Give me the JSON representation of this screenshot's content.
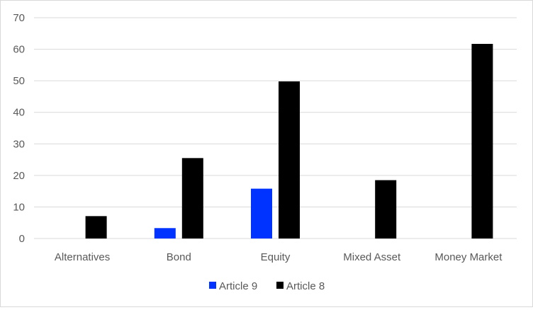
{
  "chart_data": {
    "type": "bar",
    "title": "",
    "xlabel": "",
    "ylabel": "",
    "categories": [
      "Alternatives",
      "Bond",
      "Equity",
      "Mixed Asset",
      "Money Market"
    ],
    "series": [
      {
        "name": "Article 9",
        "color": "#0033ff",
        "values": [
          0,
          3.3,
          15.8,
          0,
          0
        ]
      },
      {
        "name": "Article 8",
        "color": "#000000",
        "values": [
          7.1,
          25.5,
          49.8,
          18.5,
          61.7
        ]
      }
    ],
    "ylim": [
      0,
      70
    ],
    "yticks": [
      0,
      10,
      20,
      30,
      40,
      50,
      60,
      70
    ],
    "grid": true,
    "gridline_color": "#d9d9d9",
    "legend": "bottom"
  }
}
